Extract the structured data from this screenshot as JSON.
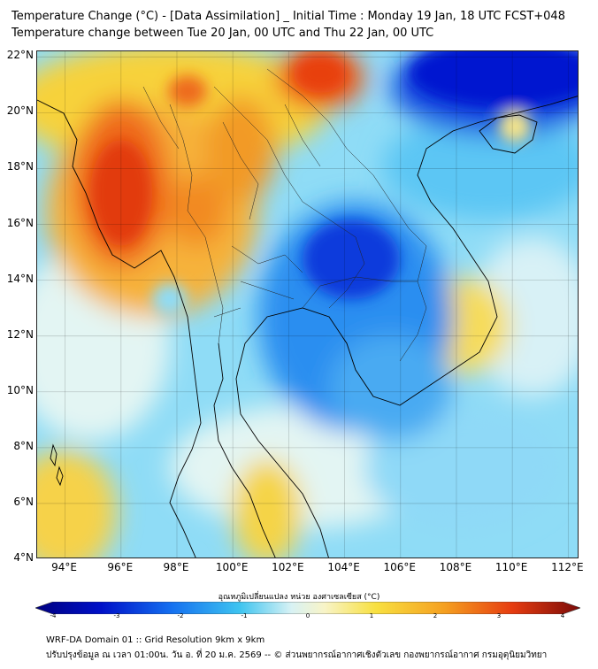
{
  "header": {
    "title_line1": "Temperature Change (°C) - [Data Assimilation] _ Initial Time : Monday 19 Jan, 18 UTC FCST+048",
    "title_line2": "Temperature change between Tue 20 Jan, 00 UTC and Thu 22 Jan, 00 UTC"
  },
  "map": {
    "lat_labels": [
      "22°N",
      "20°N",
      "18°N",
      "16°N",
      "14°N",
      "12°N",
      "10°N",
      "8°N",
      "6°N",
      "4°N"
    ],
    "lon_labels": [
      "94°E",
      "96°E",
      "98°E",
      "100°E",
      "102°E",
      "104°E",
      "106°E",
      "108°E",
      "110°E",
      "112°E"
    ],
    "lat_range": [
      4,
      22.2
    ],
    "lon_range": [
      93,
      112.4
    ],
    "grid": true,
    "colors": {
      "strong_cold": "#0018d8",
      "cold": "#2b8cf0",
      "cool": "#5cc8f4",
      "neutral": "#dff4f4",
      "warm": "#f8d838",
      "hot": "#f59020",
      "very_hot": "#e63a0e",
      "coastline": "#000000"
    }
  },
  "colorbar": {
    "title": "อุณหภูมิเปลี่ยนแปลง หน่วย องศาเซลเซียส (°C)",
    "ticks": [
      "-4",
      "-3",
      "-2",
      "-1",
      "0",
      "1",
      "2",
      "3",
      "4"
    ],
    "range": [
      -4,
      4
    ]
  },
  "footer": {
    "line1": "WRF-DA Domain 01 :: Grid Resolution 9km x 9km",
    "line2": "ปรับปรุงข้อมูล ณ เวลา 01:00น. วัน อ. ที่ 20 ม.ค. 2569 -- © ส่วนพยากรณ์อากาศเชิงตัวเลข กองพยากรณ์อากาศ กรมอุตุนิยมวิทยา"
  }
}
